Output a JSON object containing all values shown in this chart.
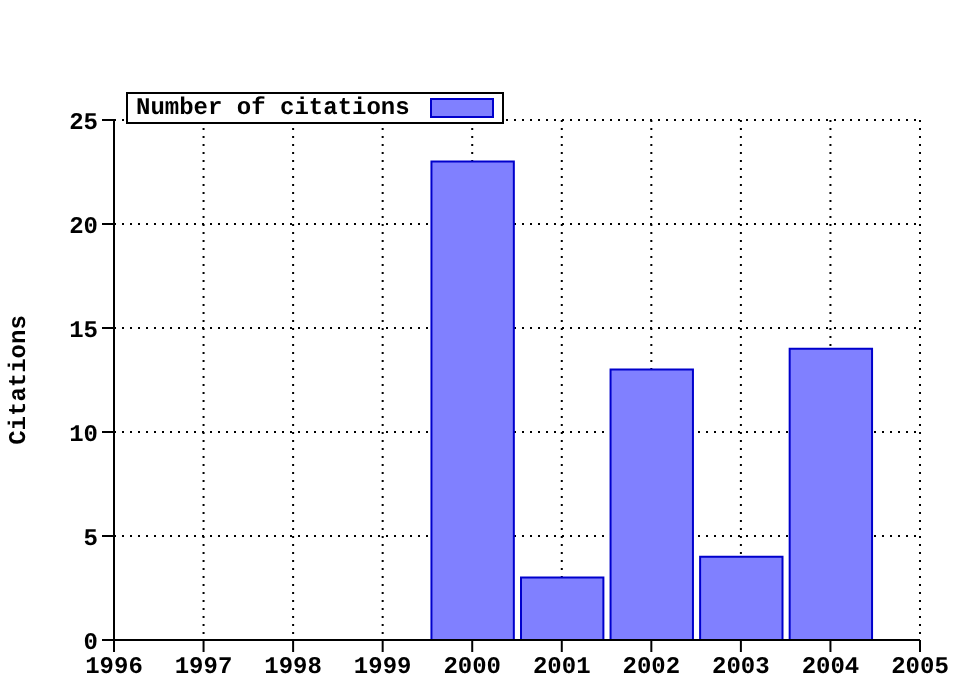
{
  "chart_data": {
    "type": "bar",
    "ylabel": "Citations",
    "x": [
      2000,
      2001,
      2002,
      2003,
      2004
    ],
    "series": [
      {
        "name": "Number of citations",
        "color": "#8080ff",
        "values": [
          23,
          3,
          13,
          4,
          14
        ]
      }
    ],
    "xlim": [
      1996,
      2005
    ],
    "xticks": [
      1996,
      1997,
      1998,
      1999,
      2000,
      2001,
      2002,
      2003,
      2004,
      2005
    ],
    "ylim": [
      0,
      25
    ],
    "yticks": [
      0,
      5,
      10,
      15,
      20,
      25
    ],
    "grid": true,
    "legend": "top left"
  }
}
